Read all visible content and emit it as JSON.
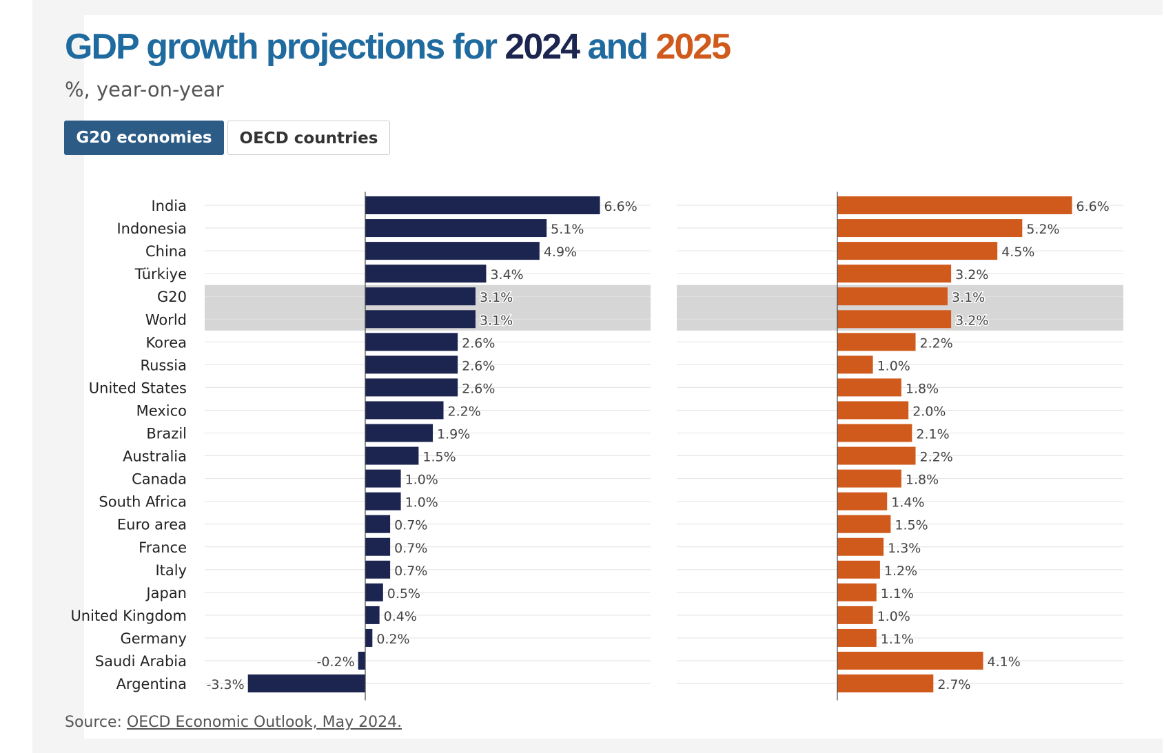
{
  "title": {
    "prefix": "GDP growth projections for ",
    "year1": "2024",
    "joiner": " and ",
    "year2": "2025"
  },
  "subtitle": "%, year-on-year",
  "tabs": [
    {
      "label": "G20 economies",
      "active": true
    },
    {
      "label": "OECD countries",
      "active": false
    }
  ],
  "source": {
    "prefix": "Source: ",
    "link_text": "OECD Economic Outlook, May 2024."
  },
  "colors": {
    "series_2024": "#1b2550",
    "series_2025": "#d05a1c",
    "highlight_band": "#d6d6d6",
    "active_tab": "#2c5b85",
    "title": "#1f6a9e"
  },
  "chart_data": {
    "type": "bar",
    "orientation": "horizontal",
    "categories": [
      "India",
      "Indonesia",
      "China",
      "Türkiye",
      "G20",
      "World",
      "Korea",
      "Russia",
      "United States",
      "Mexico",
      "Brazil",
      "Australia",
      "Canada",
      "South Africa",
      "Euro area",
      "France",
      "Italy",
      "Japan",
      "United Kingdom",
      "Germany",
      "Saudi Arabia",
      "Argentina"
    ],
    "highlighted": [
      "G20",
      "World"
    ],
    "series": [
      {
        "values": [
          6.6,
          5.1,
          4.9,
          3.4,
          3.1,
          3.1,
          2.6,
          2.6,
          2.6,
          2.2,
          1.9,
          1.5,
          1.0,
          1.0,
          0.7,
          0.7,
          0.7,
          0.5,
          0.4,
          0.2,
          -0.2,
          -3.3
        ]
      },
      {
        "values": [
          6.6,
          5.2,
          4.5,
          3.2,
          3.1,
          3.2,
          2.2,
          1.0,
          1.8,
          2.0,
          2.1,
          2.2,
          1.8,
          1.4,
          1.5,
          1.3,
          1.2,
          1.1,
          1.0,
          1.1,
          4.1,
          2.7
        ]
      }
    ],
    "value_suffix": "%",
    "decimals": 1,
    "grid": true
  }
}
